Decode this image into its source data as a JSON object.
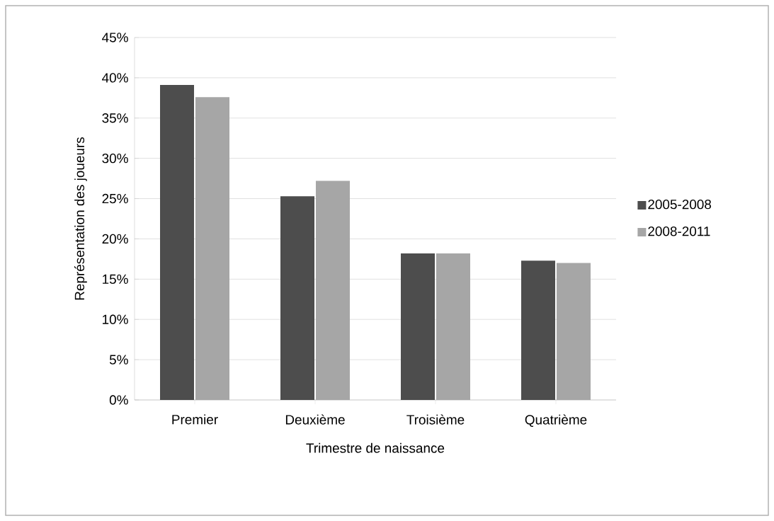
{
  "chart_data": {
    "type": "bar",
    "xlabel": "Trimestre de naissance",
    "ylabel": "Représentation des joueurs",
    "categories": [
      "Premier",
      "Deuxième",
      "Troisième",
      "Quatrième"
    ],
    "series": [
      {
        "name": "2005-2008",
        "color": "#4d4d4d",
        "values": [
          39.1,
          25.3,
          18.2,
          17.3
        ]
      },
      {
        "name": "2008-2011",
        "color": "#a6a6a6",
        "values": [
          37.6,
          27.2,
          18.2,
          17.0
        ]
      }
    ],
    "ylim": [
      0,
      45
    ],
    "yticks": [
      {
        "value": 0,
        "label": "0%"
      },
      {
        "value": 5,
        "label": "5%"
      },
      {
        "value": 10,
        "label": "10%"
      },
      {
        "value": 15,
        "label": "15%"
      },
      {
        "value": 20,
        "label": "20%"
      },
      {
        "value": 25,
        "label": "25%"
      },
      {
        "value": 30,
        "label": "30%"
      },
      {
        "value": 35,
        "label": "35%"
      },
      {
        "value": 40,
        "label": "40%"
      },
      {
        "value": 45,
        "label": "45%"
      }
    ],
    "grid": "y",
    "legend": "right"
  }
}
